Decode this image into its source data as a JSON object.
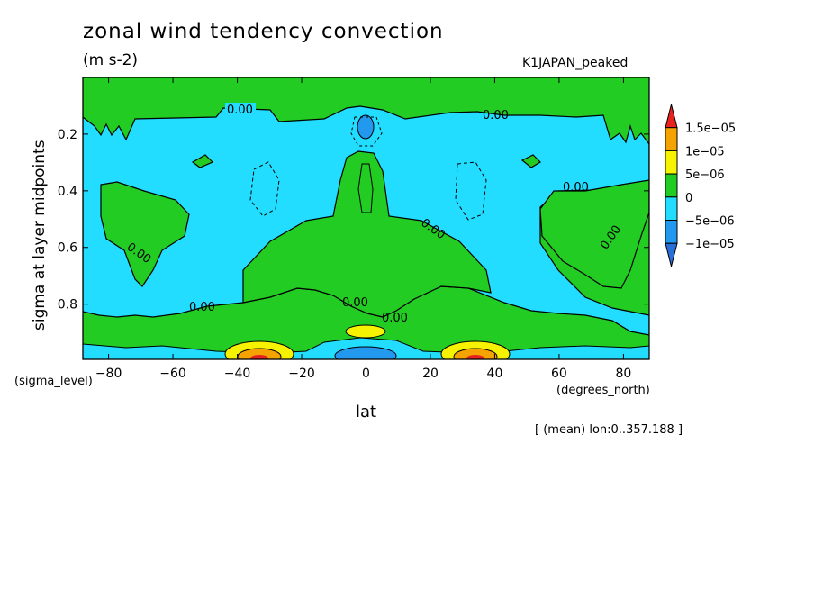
{
  "chart_data": {
    "type": "heatmap",
    "title": "zonal wind tendency convection",
    "units": "(m s-2)",
    "run_label": "K1JAPAN_peaked",
    "xlabel": "lat",
    "x_coord_label": "(degrees_north)",
    "ylabel": "sigma at layer midpoints",
    "y_coord_label": "(sigma_level)",
    "note": "[ (mean) lon:0..357.188 ]",
    "x_ticks": [
      -80,
      -60,
      -40,
      -20,
      0,
      20,
      40,
      60,
      80
    ],
    "y_ticks": [
      0.2,
      0.4,
      0.6,
      0.8
    ],
    "xlim": [
      -88,
      88
    ],
    "ylim": [
      0.995,
      0.0
    ],
    "contour_labels": [
      "0.00",
      "0.00",
      "0.00",
      "0.00",
      "0.00",
      "0.00",
      "0.00",
      "0.00",
      "0.00"
    ],
    "colorbar": {
      "levels": [
        "1.5e-05",
        "1e-05",
        "5e-06",
        "0",
        "-5e-06",
        "-1e-05"
      ],
      "colors": [
        "#e8231f",
        "#f5a300",
        "#f7f300",
        "#22cc22",
        "#22ddff",
        "#2299ee",
        "#2a6fd8"
      ]
    }
  }
}
